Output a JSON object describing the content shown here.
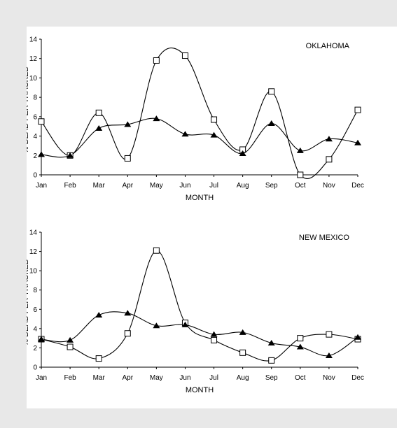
{
  "chart_data": [
    {
      "type": "line",
      "title": "OKLAHOMA",
      "xlabel": "MONTH",
      "ylabel": "% DEAD PER TRACKED",
      "ylim": [
        0,
        14
      ],
      "yticks": [
        0,
        2,
        4,
        6,
        8,
        10,
        12,
        14
      ],
      "categories": [
        "Jan",
        "Feb",
        "Mar",
        "Apr",
        "May",
        "Jun",
        "Jul",
        "Aug",
        "Sep",
        "Oct",
        "Nov",
        "Dec"
      ],
      "grid": false,
      "smooth": true,
      "series": [
        {
          "marker": "open-square",
          "color": "#000000",
          "values": [
            5.5,
            2.0,
            6.4,
            1.7,
            11.8,
            12.3,
            5.7,
            2.6,
            8.6,
            0.0,
            1.6,
            6.7
          ]
        },
        {
          "marker": "filled-triangle",
          "color": "#000000",
          "values": [
            2.1,
            2.0,
            4.8,
            5.2,
            5.8,
            4.2,
            4.1,
            2.2,
            5.3,
            2.5,
            3.7,
            3.3
          ]
        }
      ]
    },
    {
      "type": "line",
      "title": "NEW MEXICO",
      "xlabel": "MONTH",
      "ylabel": "% DEAD PER TRACKED",
      "ylim": [
        0,
        14
      ],
      "yticks": [
        0,
        2,
        4,
        6,
        8,
        10,
        12,
        14
      ],
      "categories": [
        "Jan",
        "Feb",
        "Mar",
        "Apr",
        "May",
        "Jun",
        "Jul",
        "Aug",
        "Sep",
        "Oct",
        "Nov",
        "Dec"
      ],
      "grid": false,
      "smooth": true,
      "series": [
        {
          "marker": "open-square",
          "color": "#000000",
          "values": [
            2.9,
            2.1,
            0.9,
            3.5,
            12.1,
            4.6,
            2.8,
            1.5,
            0.7,
            3.0,
            3.4,
            2.9
          ]
        },
        {
          "marker": "filled-triangle",
          "color": "#000000",
          "values": [
            2.9,
            2.8,
            5.4,
            5.6,
            4.3,
            4.4,
            3.4,
            3.6,
            2.5,
            2.1,
            1.2,
            3.1
          ]
        }
      ]
    }
  ]
}
